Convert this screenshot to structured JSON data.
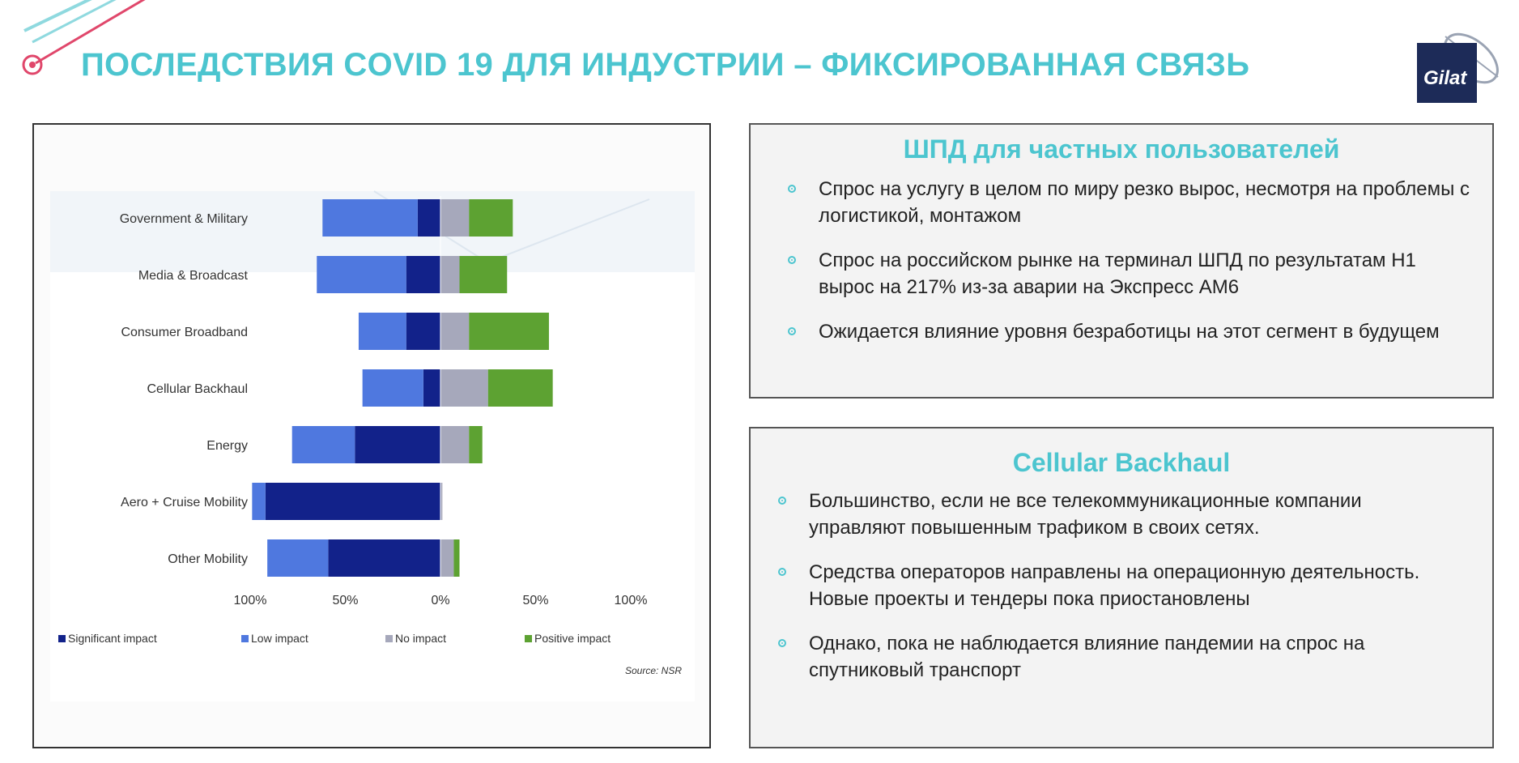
{
  "header": {
    "title": "ПОСЛЕДСТВИЯ COVID 19 ДЛЯ ИНДУСТРИИ – ФИКСИРОВАННАЯ СВЯЗЬ",
    "logo_text": "Gilat"
  },
  "colors": {
    "accent": "#4cc5cf",
    "significant": "#12228a",
    "low": "#4f78df",
    "no": "#a6a8bb",
    "positive": "#5da232"
  },
  "chart_data": {
    "type": "bar",
    "orientation": "horizontal-diverging",
    "categories": [
      "Government & Military",
      "Media & Broadcast",
      "Consumer Broadband",
      "Cellular Backhaul",
      "Energy",
      "Aero + Cruise Mobility",
      "Other Mobility"
    ],
    "series": [
      {
        "name": "Significant impact",
        "side": "negative",
        "values": [
          12,
          18,
          18,
          9,
          45,
          92,
          59
        ]
      },
      {
        "name": "Low impact",
        "side": "negative",
        "values": [
          50,
          47,
          25,
          32,
          33,
          7,
          32
        ]
      },
      {
        "name": "No impact",
        "side": "positive",
        "values": [
          15,
          10,
          15,
          25,
          15,
          1,
          7
        ]
      },
      {
        "name": "Positive impact",
        "side": "positive",
        "values": [
          23,
          25,
          42,
          34,
          7,
          0,
          3
        ]
      }
    ],
    "xticks": [
      "100%",
      "50%",
      "0%",
      "50%",
      "100%"
    ],
    "xlim": [
      -100,
      100
    ],
    "legend_position": "bottom",
    "source": "Source: NSR"
  },
  "panel_broadband": {
    "title": "ШПД для частных пользователей",
    "bullets": [
      "Спрос на услугу в целом по миру резко вырос, несмотря на проблемы с логистикой, монтажом",
      "Спрос на  российском рынке на терминал ШПД по результатам H1 вырос на 217% из-за аварии на Экспресс АМ6",
      "Ожидается влияние уровня безработицы на этот сегмент в будущем"
    ]
  },
  "panel_backhaul": {
    "title": "Cellular Backhaul",
    "bullets": [
      "Большинство, если не все телекоммуникационные компании управляют повышенным трафиком в своих сетях.",
      "Средства операторов направлены на операционную деятельность. Новые проекты и тендеры пока приостановлены",
      "Однако, пока не наблюдается влияние пандемии на  спрос на спутниковый транспорт"
    ]
  }
}
